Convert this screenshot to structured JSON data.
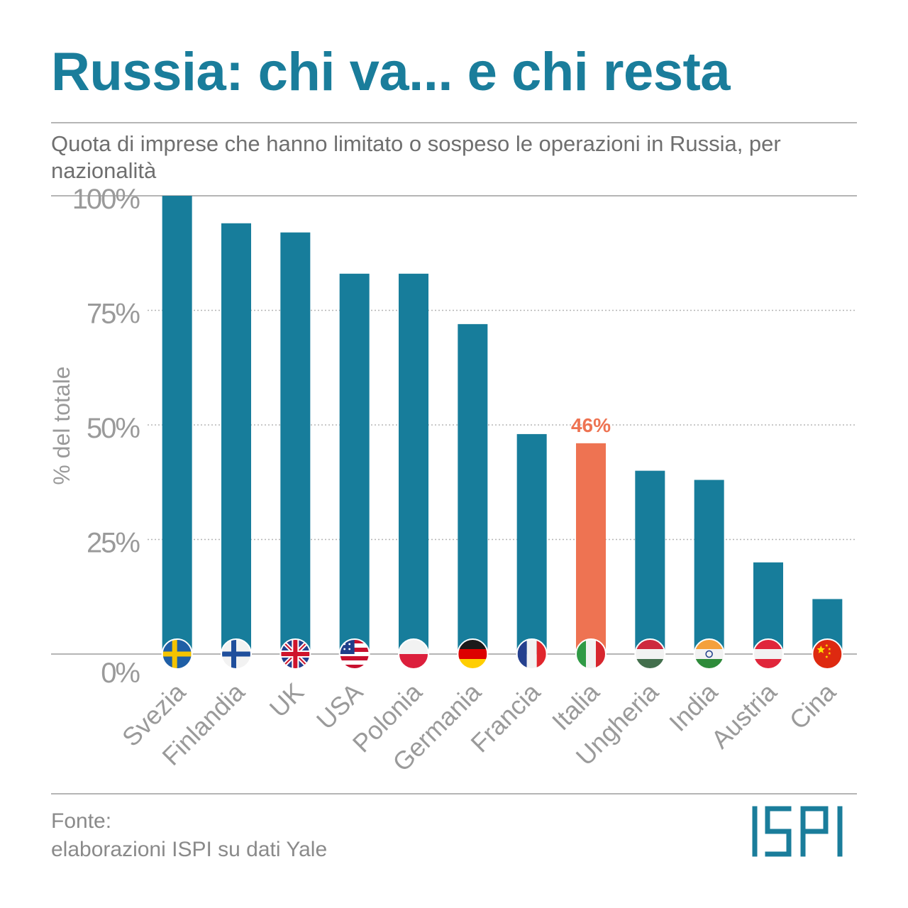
{
  "title": "Russia: chi va... e chi resta",
  "subtitle": "Quota di imprese che hanno limitato o sospeso le operazioni in Russia, per nazionalità",
  "footer": {
    "line1": "Fonte:",
    "line2": "elaborazioni ISPI su dati Yale"
  },
  "logo": {
    "text": "ISPI"
  },
  "colors": {
    "bar": "#177d9b",
    "highlight": "#ee7352",
    "title": "#1a7d9b",
    "axis_text": "#9a9a9a",
    "grid": "#b5b5b5"
  },
  "chart_data": {
    "type": "bar",
    "title": "Russia: chi va... e chi resta",
    "subtitle": "Quota di imprese che hanno limitato o sospeso le operazioni in Russia, per nazionalità",
    "ylabel": "% del totale",
    "xlabel": "",
    "ylim": [
      0,
      100
    ],
    "yticks": [
      0,
      25,
      50,
      75,
      100
    ],
    "ytick_labels": [
      "0%",
      "25%",
      "50%",
      "75%",
      "100%"
    ],
    "grid": true,
    "categories": [
      "Svezia",
      "Finlandia",
      "UK",
      "USA",
      "Polonia",
      "Germania",
      "Francia",
      "Italia",
      "Ungheria",
      "India",
      "Austria",
      "Cina"
    ],
    "values": [
      100,
      94,
      92,
      83,
      83,
      72,
      48,
      46,
      40,
      38,
      20,
      12
    ],
    "highlight": {
      "category": "Italia",
      "label": "46%"
    },
    "flags": [
      "sweden-flag-icon",
      "finland-flag-icon",
      "uk-flag-icon",
      "usa-flag-icon",
      "poland-flag-icon",
      "germany-flag-icon",
      "france-flag-icon",
      "italy-flag-icon",
      "hungary-flag-icon",
      "india-flag-icon",
      "austria-flag-icon",
      "china-flag-icon"
    ]
  }
}
